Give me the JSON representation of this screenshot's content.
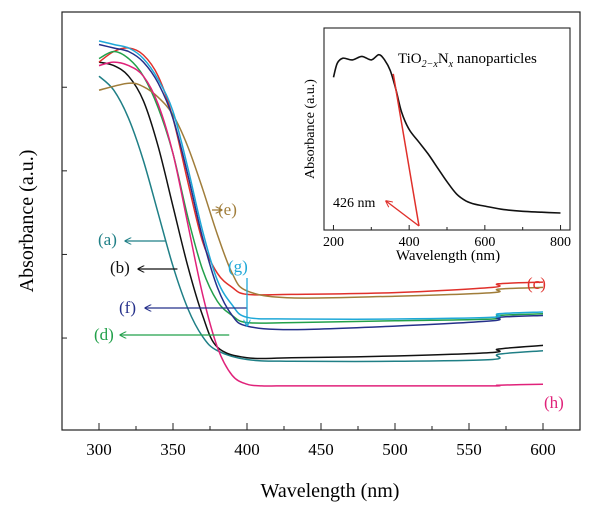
{
  "chart_data": [
    {
      "type": "line",
      "xlabel": "Wavelength (nm)",
      "ylabel": "Absorbance (a.u.)",
      "xlim": [
        275,
        625
      ],
      "ylim": [
        0,
        1
      ],
      "x_ticks": [
        "300",
        "350",
        "400",
        "450",
        "500",
        "550",
        "600"
      ],
      "x_tick_values": [
        300,
        350,
        400,
        450,
        500,
        550,
        600
      ],
      "y_ticks_labeled": false,
      "grid": false,
      "series": [
        {
          "name": "(a)",
          "color": "#1f7f86",
          "x": [
            300,
            310,
            320,
            330,
            340,
            350,
            360,
            370,
            380,
            400,
            430,
            500,
            566,
            570,
            600
          ],
          "values": [
            0.92,
            0.88,
            0.8,
            0.68,
            0.53,
            0.38,
            0.26,
            0.18,
            0.14,
            0.115,
            0.11,
            0.11,
            0.115,
            0.13,
            0.14
          ]
        },
        {
          "name": "(b)",
          "color": "#111111",
          "x": [
            300,
            310,
            320,
            330,
            340,
            350,
            360,
            370,
            380,
            400,
            430,
            500,
            566,
            570,
            600
          ],
          "values": [
            0.96,
            0.95,
            0.92,
            0.85,
            0.72,
            0.55,
            0.38,
            0.24,
            0.15,
            0.12,
            0.12,
            0.125,
            0.135,
            0.145,
            0.155
          ]
        },
        {
          "name": "(c)",
          "color": "#e0302b",
          "x": [
            300,
            310,
            320,
            330,
            340,
            350,
            360,
            370,
            380,
            390,
            400,
            430,
            500,
            566,
            570,
            600
          ],
          "values": [
            0.96,
            0.99,
            1.0,
            0.98,
            0.92,
            0.8,
            0.62,
            0.45,
            0.36,
            0.32,
            0.3,
            0.3,
            0.305,
            0.32,
            0.33,
            0.335
          ]
        },
        {
          "name": "(d)",
          "color": "#22a04a",
          "x": [
            300,
            310,
            320,
            330,
            340,
            350,
            360,
            370,
            380,
            390,
            400,
            430,
            500,
            566,
            570,
            600
          ],
          "values": [
            0.97,
            0.99,
            0.97,
            0.92,
            0.83,
            0.7,
            0.52,
            0.37,
            0.28,
            0.24,
            0.22,
            0.22,
            0.225,
            0.23,
            0.24,
            0.245
          ]
        },
        {
          "name": "(e)",
          "color": "#a07d3a",
          "x": [
            300,
            320,
            330,
            340,
            350,
            360,
            370,
            380,
            390,
            400,
            430,
            500,
            566,
            570,
            600
          ],
          "values": [
            0.88,
            0.9,
            0.89,
            0.86,
            0.81,
            0.72,
            0.6,
            0.47,
            0.36,
            0.31,
            0.29,
            0.295,
            0.305,
            0.315,
            0.32
          ]
        },
        {
          "name": "(f)",
          "color": "#25308a",
          "x": [
            300,
            310,
            320,
            330,
            340,
            350,
            360,
            370,
            380,
            390,
            400,
            430,
            500,
            566,
            570,
            600
          ],
          "values": [
            1.01,
            1.0,
            0.99,
            0.96,
            0.9,
            0.8,
            0.64,
            0.46,
            0.32,
            0.24,
            0.21,
            0.2,
            0.21,
            0.225,
            0.235,
            0.24
          ]
        },
        {
          "name": "(g)",
          "color": "#1ea8d8",
          "x": [
            300,
            310,
            320,
            330,
            340,
            350,
            360,
            370,
            380,
            390,
            400,
            430,
            500,
            566,
            570,
            600
          ],
          "values": [
            1.02,
            1.01,
            1.0,
            0.97,
            0.91,
            0.82,
            0.66,
            0.48,
            0.34,
            0.27,
            0.235,
            0.23,
            0.23,
            0.235,
            0.245,
            0.25
          ]
        },
        {
          "name": "(h)",
          "color": "#e0227a",
          "x": [
            300,
            310,
            320,
            330,
            340,
            350,
            360,
            370,
            380,
            390,
            400,
            410,
            420,
            430,
            500,
            566,
            570,
            600
          ],
          "values": [
            0.95,
            0.96,
            0.95,
            0.92,
            0.84,
            0.7,
            0.5,
            0.3,
            0.15,
            0.07,
            0.045,
            0.04,
            0.04,
            0.04,
            0.04,
            0.04,
            0.042,
            0.045
          ]
        }
      ],
      "annotations": [
        {
          "text": "(a)",
          "color": "#1f7f86",
          "arrow_target_x": 345
        },
        {
          "text": "(b)",
          "color": "#111111",
          "arrow_target_x": 353
        },
        {
          "text": "(c)",
          "color": "#e0302b"
        },
        {
          "text": "(d)",
          "color": "#22a04a",
          "arrow_target_x": 388
        },
        {
          "text": "(e)",
          "color": "#a07d3a",
          "arrow_target_x": 383
        },
        {
          "text": "(f)",
          "color": "#25308a",
          "arrow_target_x": 400
        },
        {
          "text": "(g)",
          "color": "#1ea8d8",
          "arrow_target_x": 400
        },
        {
          "text": "(h)",
          "color": "#e0227a"
        }
      ]
    },
    {
      "type": "line",
      "title_parts": [
        "TiO",
        "2−x",
        "N",
        "x",
        " nanoparticles"
      ],
      "xlabel": "Wavelength (nm)",
      "ylabel": "Absorbance (a.u.)",
      "xlim": [
        175,
        825
      ],
      "ylim": [
        0,
        1
      ],
      "x_ticks": [
        "200",
        "400",
        "600",
        "800"
      ],
      "x_tick_values": [
        200,
        400,
        600,
        800
      ],
      "grid": false,
      "series": [
        {
          "color": "#111111",
          "x": [
            200,
            210,
            225,
            250,
            275,
            300,
            320,
            335,
            350,
            365,
            380,
            400,
            425,
            450,
            475,
            500,
            525,
            550,
            575,
            600,
            650,
            700,
            750,
            800
          ],
          "values": [
            0.82,
            0.9,
            0.93,
            0.92,
            0.94,
            0.92,
            0.95,
            0.92,
            0.86,
            0.75,
            0.62,
            0.52,
            0.45,
            0.38,
            0.3,
            0.22,
            0.15,
            0.11,
            0.09,
            0.08,
            0.06,
            0.05,
            0.045,
            0.04
          ]
        }
      ],
      "fit_line": {
        "color": "#e0302b",
        "x": [
          358,
          426
        ],
        "values": [
          0.84,
          0.0
        ]
      },
      "annotation": {
        "text": "426 nm",
        "x": 426,
        "color": "#e0302b"
      }
    }
  ]
}
